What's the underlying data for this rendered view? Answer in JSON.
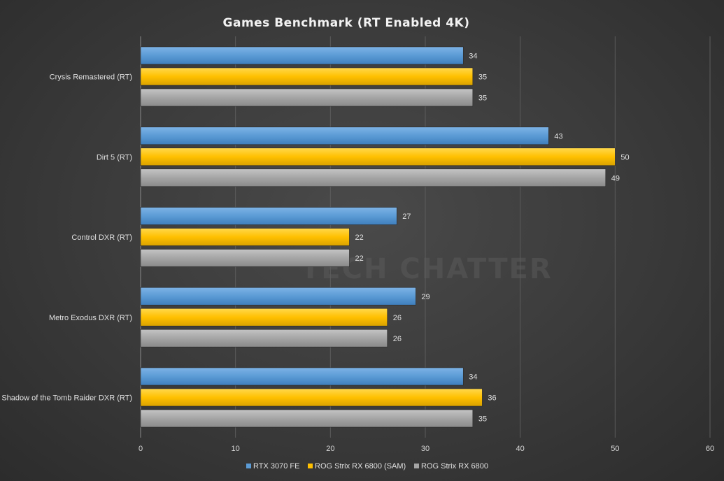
{
  "chart_data": {
    "type": "bar",
    "orientation": "horizontal",
    "title": "Games Benchmark (RT Enabled 4K)",
    "categories": [
      "Crysis Remastered (RT)",
      "Dirt 5 (RT)",
      "Control DXR (RT)",
      "Metro Exodus DXR (RT)",
      "Shadow of the Tomb Raider DXR (RT)"
    ],
    "series": [
      {
        "name": "RTX 3070 FE",
        "color": "#5b9bd5",
        "values": [
          34,
          43,
          27,
          29,
          34
        ]
      },
      {
        "name": "ROG Strix RX 6800 (SAM)",
        "color": "#ffc000",
        "values": [
          35,
          50,
          22,
          26,
          36
        ]
      },
      {
        "name": "ROG Strix RX 6800",
        "color": "#a5a5a5",
        "values": [
          35,
          49,
          22,
          26,
          35
        ]
      }
    ],
    "xlim": [
      0,
      60
    ],
    "xticks": [
      0,
      10,
      20,
      30,
      40,
      50,
      60
    ],
    "grid": true,
    "legend_position": "bottom",
    "watermark": "TECH CHATTER"
  }
}
